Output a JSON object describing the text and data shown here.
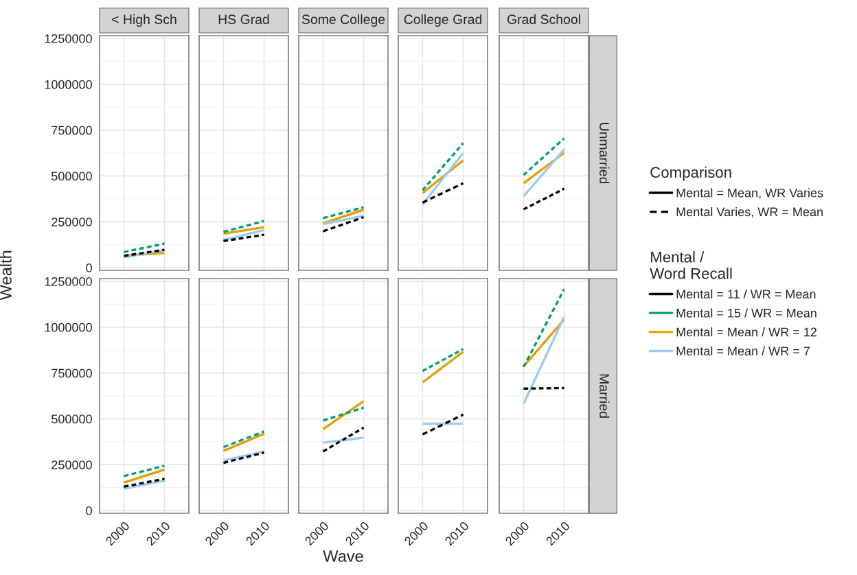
{
  "chart_data": [
    {
      "type": "line",
      "title": "< High Sch",
      "ylabel": "Wealth",
      "legend_title": "Mental /\nWord Recall",
      "legend": "right",
      "annotations": [
        "Comparison",
        "Mental = Mean, WR Varies",
        "Mental Varies, WR = Mean"
      ],
      "categories": [
        "2000",
        "2010"
      ],
      "ylim": [
        -15000,
        1265000
      ],
      "yticks": [
        0,
        250000,
        500000,
        750000,
        1000000,
        1250000
      ],
      "grid": true,
      "tick_labels": "y",
      "series": [
        {
          "name": "Mental = 11 / WR = Mean",
          "color": "#000000",
          "line_style": "dashed",
          "values": [
            64000,
            97000
          ]
        },
        {
          "name": "Mental = 15 / WR = Mean",
          "color": "#009e73",
          "line_style": "dashed",
          "values": [
            85000,
            131000
          ]
        },
        {
          "name": "Mental = Mean / WR = 12",
          "color": "#e69f00",
          "line_style": "solid",
          "values": [
            66000,
            79000
          ]
        },
        {
          "name": "Mental = Mean / WR = 7",
          "color": "#9ccbf0",
          "line_style": "solid",
          "values": [
            56000,
            95000
          ]
        }
      ]
    },
    {
      "type": "line",
      "title": "HS Grad",
      "categories": [
        "2000",
        "2010"
      ],
      "ylim": [
        -15000,
        1265000
      ],
      "yticks": [
        0,
        250000,
        500000,
        750000,
        1000000,
        1250000
      ],
      "grid": true,
      "tick_labels": false,
      "series": [
        {
          "color": "#000000",
          "line_style": "dashed",
          "values": [
            145000,
            179000
          ]
        },
        {
          "color": "#009e73",
          "line_style": "dashed",
          "values": [
            195000,
            254000
          ]
        },
        {
          "color": "#e69f00",
          "line_style": "solid",
          "values": [
            185000,
            220000
          ]
        },
        {
          "color": "#9ccbf0",
          "line_style": "solid",
          "values": [
            150000,
            204000
          ]
        }
      ]
    },
    {
      "type": "line",
      "title": "Some College",
      "categories": [
        "2000",
        "2010"
      ],
      "ylim": [
        -15000,
        1265000
      ],
      "yticks": [
        0,
        250000,
        500000,
        750000,
        1000000,
        1250000
      ],
      "grid": true,
      "tick_labels": false,
      "series": [
        {
          "color": "#000000",
          "line_style": "dashed",
          "values": [
            198000,
            275000
          ]
        },
        {
          "color": "#009e73",
          "line_style": "dashed",
          "values": [
            270000,
            329000
          ]
        },
        {
          "color": "#e69f00",
          "line_style": "solid",
          "values": [
            241000,
            316000
          ]
        },
        {
          "color": "#9ccbf0",
          "line_style": "solid",
          "values": [
            237000,
            283000
          ]
        }
      ]
    },
    {
      "type": "line",
      "title": "College Grad",
      "categories": [
        "2000",
        "2010"
      ],
      "ylim": [
        -15000,
        1265000
      ],
      "yticks": [
        0,
        250000,
        500000,
        750000,
        1000000,
        1250000
      ],
      "grid": true,
      "tick_labels": false,
      "series": [
        {
          "color": "#000000",
          "line_style": "dashed",
          "values": [
            355000,
            460000
          ]
        },
        {
          "color": "#009e73",
          "line_style": "dashed",
          "values": [
            422000,
            679000
          ]
        },
        {
          "color": "#e69f00",
          "line_style": "solid",
          "values": [
            407000,
            585000
          ]
        },
        {
          "color": "#9ccbf0",
          "line_style": "solid",
          "values": [
            345000,
            625000
          ]
        }
      ]
    },
    {
      "type": "line",
      "title": "Grad School",
      "y2label": "Unmarried",
      "categories": [
        "2000",
        "2010"
      ],
      "ylim": [
        -15000,
        1265000
      ],
      "yticks": [
        0,
        250000,
        500000,
        750000,
        1000000,
        1250000
      ],
      "grid": true,
      "tick_labels": false,
      "series": [
        {
          "color": "#000000",
          "line_style": "dashed",
          "values": [
            318000,
            430000
          ]
        },
        {
          "color": "#009e73",
          "line_style": "dashed",
          "values": [
            505000,
            705000
          ]
        },
        {
          "color": "#e69f00",
          "line_style": "solid",
          "values": [
            460000,
            626000
          ]
        },
        {
          "color": "#9ccbf0",
          "line_style": "solid",
          "values": [
            389000,
            645000
          ]
        }
      ]
    },
    {
      "type": "line",
      "categories": [
        "2000",
        "2010"
      ],
      "ylim": [
        -15000,
        1265000
      ],
      "yticks": [
        0,
        250000,
        500000,
        750000,
        1000000,
        1250000
      ],
      "grid": true,
      "series": [
        {
          "color": "#000000",
          "line_style": "dashed",
          "values": [
            130000,
            173000
          ]
        },
        {
          "color": "#009e73",
          "line_style": "dashed",
          "values": [
            188000,
            244000
          ]
        },
        {
          "color": "#e69f00",
          "line_style": "solid",
          "values": [
            152000,
            223000
          ]
        },
        {
          "color": "#9ccbf0",
          "line_style": "solid",
          "values": [
            118000,
            163000
          ]
        }
      ]
    },
    {
      "type": "line",
      "categories": [
        "2000",
        "2010"
      ],
      "ylim": [
        -15000,
        1265000
      ],
      "yticks": [
        0,
        250000,
        500000,
        750000,
        1000000,
        1250000
      ],
      "grid": true,
      "tick_labels": "x",
      "series": [
        {
          "color": "#000000",
          "line_style": "dashed",
          "values": [
            260000,
            316000
          ]
        },
        {
          "color": "#009e73",
          "line_style": "dashed",
          "values": [
            346000,
            431000
          ]
        },
        {
          "color": "#e69f00",
          "line_style": "solid",
          "values": [
            325000,
            418000
          ]
        },
        {
          "color": "#9ccbf0",
          "line_style": "solid",
          "values": [
            272000,
            322000
          ]
        }
      ]
    },
    {
      "type": "line",
      "xlabel": "Wave",
      "categories": [
        "2000",
        "2010"
      ],
      "ylim": [
        -15000,
        1265000
      ],
      "yticks": [
        0,
        250000,
        500000,
        750000,
        1000000,
        1250000
      ],
      "grid": true,
      "tick_labels": "x",
      "series": [
        {
          "color": "#000000",
          "line_style": "dashed",
          "values": [
            322000,
            452000
          ]
        },
        {
          "color": "#009e73",
          "line_style": "dashed",
          "values": [
            491000,
            561000
          ]
        },
        {
          "color": "#e69f00",
          "line_style": "solid",
          "values": [
            444000,
            596000
          ]
        },
        {
          "color": "#9ccbf0",
          "line_style": "solid",
          "values": [
            370000,
            397000
          ]
        }
      ]
    },
    {
      "type": "line",
      "categories": [
        "2000",
        "2010"
      ],
      "ylim": [
        -15000,
        1265000
      ],
      "yticks": [
        0,
        250000,
        500000,
        750000,
        1000000,
        1250000
      ],
      "grid": true,
      "tick_labels": "x",
      "series": [
        {
          "color": "#000000",
          "line_style": "dashed",
          "values": [
            415000,
            523000
          ]
        },
        {
          "color": "#009e73",
          "line_style": "dashed",
          "values": [
            761000,
            881000
          ]
        },
        {
          "color": "#e69f00",
          "line_style": "solid",
          "values": [
            699000,
            866000
          ]
        },
        {
          "color": "#9ccbf0",
          "line_style": "solid",
          "values": [
            474000,
            474000
          ]
        }
      ]
    },
    {
      "type": "line",
      "y2label": "Married",
      "categories": [
        "2000",
        "2010"
      ],
      "ylim": [
        -15000,
        1265000
      ],
      "yticks": [
        0,
        250000,
        500000,
        750000,
        1000000,
        1250000
      ],
      "grid": true,
      "tick_labels": "x",
      "series": [
        {
          "color": "#000000",
          "line_style": "dashed",
          "values": [
            665000,
            668000
          ]
        },
        {
          "color": "#009e73",
          "line_style": "dashed",
          "values": [
            783000,
            1207000
          ]
        },
        {
          "color": "#e69f00",
          "line_style": "solid",
          "values": [
            786000,
            1042000
          ]
        },
        {
          "color": "#9ccbf0",
          "line_style": "solid",
          "values": [
            582000,
            1056000
          ]
        }
      ]
    }
  ]
}
